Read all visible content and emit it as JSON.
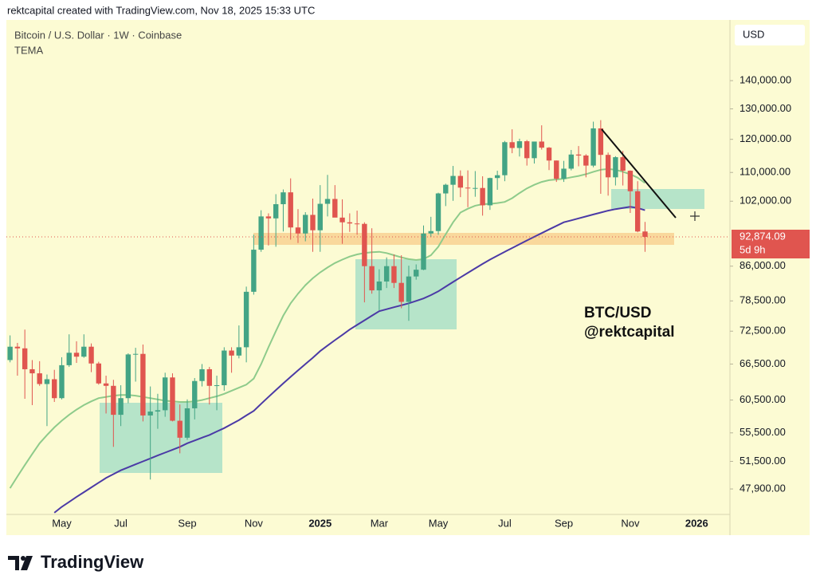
{
  "header": "rektcapital created with TradingView.com, Nov 18, 2025 15:33 UTC",
  "footer_brand": "TradingView",
  "chart_data": {
    "type": "candlestick",
    "title": "Bitcoin / U.S. Dollar · 1W · Coinbase",
    "indicator_label": "TEMA",
    "currency": "USD",
    "log_scale": true,
    "grid": false,
    "up_color": "#43a485",
    "down_color": "#e0554f",
    "ylim": [
      44800,
      164200
    ],
    "yticks": [
      {
        "value": 140000,
        "label": "140,000.00"
      },
      {
        "value": 130000,
        "label": "130,000.00"
      },
      {
        "value": 120000,
        "label": "120,000.00"
      },
      {
        "value": 110000,
        "label": "110,000.00"
      },
      {
        "value": 102000,
        "label": "102,000.00"
      },
      {
        "value": 86000,
        "label": "86,000.00"
      },
      {
        "value": 78500,
        "label": "78,500.00"
      },
      {
        "value": 72500,
        "label": "72,500.00"
      },
      {
        "value": 66500,
        "label": "66,500.00"
      },
      {
        "value": 60500,
        "label": "60,500.00"
      },
      {
        "value": 55500,
        "label": "55,500.00"
      },
      {
        "value": 51500,
        "label": "51,500.00"
      },
      {
        "value": 47900,
        "label": "47,900.00"
      }
    ],
    "categories": [
      null,
      null,
      null,
      null,
      null,
      null,
      null,
      "May",
      null,
      null,
      null,
      null,
      null,
      null,
      null,
      "Jul",
      null,
      null,
      null,
      null,
      null,
      null,
      null,
      null,
      "Sep",
      null,
      null,
      null,
      null,
      null,
      null,
      null,
      null,
      "Nov",
      null,
      null,
      null,
      null,
      null,
      null,
      null,
      null,
      "2025",
      null,
      null,
      null,
      null,
      null,
      null,
      null,
      "Mar",
      null,
      null,
      null,
      null,
      null,
      null,
      null,
      "May",
      null,
      null,
      null,
      null,
      null,
      null,
      null,
      null,
      "Jul",
      null,
      null,
      null,
      null,
      null,
      null,
      null,
      "Sep",
      null,
      null,
      null,
      null,
      null,
      null,
      null,
      null,
      "Nov",
      null,
      null,
      null,
      null,
      null,
      null,
      null,
      null,
      "2026",
      null,
      null,
      null,
      null
    ],
    "open": [
      67200,
      69600,
      69300,
      65600,
      64900,
      63100,
      63900,
      60800,
      66300,
      68500,
      67800,
      69600,
      66600,
      63200,
      62800,
      58200,
      60800,
      68200,
      68300,
      58100,
      58700,
      58900,
      64200,
      57300,
      54800,
      59200,
      63600,
      65600,
      62800,
      62900,
      68900,
      68000,
      69500,
      80400,
      89800,
      98000,
      97500,
      101200,
      104400,
      95200,
      93700,
      98400,
      94500,
      101300,
      102600,
      97700,
      96500,
      96200,
      96100,
      86000,
      80700,
      82600,
      86000,
      82300,
      78300,
      83700,
      85200,
      93700,
      94300,
      104100,
      106500,
      109000,
      105700,
      105500,
      105600,
      100900,
      108400,
      109200,
      119100,
      117300,
      119400,
      114200,
      119300,
      117400,
      113500,
      108200,
      111100,
      115300,
      115000,
      112000,
      123500,
      115200,
      108600,
      114500,
      110500,
      104700,
      94200,
      null,
      null,
      null,
      null,
      null,
      null,
      null,
      null,
      null,
      null,
      null
    ],
    "high": [
      71700,
      70300,
      72800,
      67200,
      67000,
      64700,
      65500,
      67700,
      71900,
      70600,
      71900,
      70200,
      66900,
      64500,
      63800,
      62900,
      68400,
      69400,
      70000,
      62700,
      61500,
      65000,
      64900,
      59800,
      60600,
      64100,
      66500,
      66000,
      64500,
      69500,
      69500,
      73600,
      81500,
      93400,
      99600,
      98800,
      103900,
      105200,
      108300,
      99900,
      99100,
      102700,
      106400,
      109300,
      106400,
      102500,
      98800,
      99500,
      96500,
      95000,
      85300,
      88000,
      88700,
      88500,
      86100,
      86400,
      95700,
      97900,
      104300,
      106800,
      111900,
      110600,
      110600,
      110400,
      108900,
      108500,
      110500,
      119500,
      123200,
      120200,
      119800,
      119300,
      124500,
      117600,
      113500,
      113400,
      116700,
      117900,
      115400,
      125700,
      126200,
      115900,
      114800,
      116400,
      110600,
      107500,
      96600,
      null,
      null,
      null,
      null,
      null,
      null,
      null,
      null,
      null,
      null,
      null
    ],
    "low": [
      66800,
      64500,
      60700,
      59700,
      62800,
      56500,
      60200,
      60600,
      66000,
      66700,
      67600,
      65100,
      63000,
      58400,
      53500,
      56500,
      60000,
      63500,
      57200,
      49100,
      56100,
      57900,
      57200,
      52600,
      54500,
      57500,
      62700,
      59800,
      58900,
      62000,
      65000,
      67500,
      66800,
      79800,
      89300,
      90800,
      90500,
      94200,
      92200,
      91400,
      91800,
      89300,
      89300,
      98000,
      97800,
      91200,
      94100,
      93400,
      78200,
      80000,
      76600,
      81200,
      81200,
      77000,
      74500,
      83000,
      85100,
      92800,
      93400,
      100700,
      102100,
      103100,
      100400,
      103200,
      98200,
      99700,
      105100,
      107500,
      115700,
      114700,
      112000,
      112600,
      116800,
      110700,
      107300,
      107300,
      110600,
      111800,
      108600,
      111500,
      104000,
      103500,
      106300,
      106300,
      98900,
      94000,
      89300,
      null,
      null,
      null,
      null,
      null,
      null,
      null,
      null,
      null,
      null,
      null
    ],
    "close": [
      69600,
      69300,
      65600,
      64900,
      63100,
      63900,
      60800,
      66300,
      68500,
      67800,
      69600,
      66600,
      63200,
      62800,
      58200,
      60800,
      68200,
      68300,
      58100,
      58700,
      58900,
      64200,
      57300,
      54800,
      59200,
      63600,
      65600,
      62800,
      62900,
      68900,
      68000,
      69500,
      80400,
      89800,
      98000,
      97500,
      101200,
      104400,
      95200,
      93700,
      98400,
      94500,
      101300,
      102600,
      97700,
      96500,
      96200,
      96100,
      86000,
      80700,
      82600,
      86000,
      82300,
      78300,
      83700,
      85200,
      93700,
      94300,
      104100,
      106500,
      109000,
      105700,
      105500,
      105600,
      100900,
      108400,
      109200,
      119100,
      117300,
      119400,
      114200,
      119300,
      117400,
      113500,
      108200,
      111100,
      115300,
      115000,
      112000,
      123500,
      115200,
      108600,
      114500,
      110500,
      104700,
      94200,
      92874.09,
      null,
      null,
      null,
      null,
      null,
      null,
      null,
      null,
      null,
      null,
      null
    ],
    "indicators": [
      {
        "color": "#8ecb8b",
        "values": [
          48000,
          49500,
          51000,
          52500,
          54000,
          55200,
          56300,
          57300,
          58200,
          59000,
          59700,
          60300,
          60800,
          61000,
          61200,
          61300,
          61300,
          61200,
          61000,
          60800,
          60600,
          60400,
          60300,
          60200,
          60200,
          60300,
          60500,
          60800,
          61100,
          61500,
          62000,
          62500,
          63000,
          64000,
          66500,
          69500,
          72500,
          75500,
          78000,
          80000,
          81800,
          83300,
          84600,
          85700,
          86700,
          87500,
          88200,
          88700,
          89000,
          89200,
          89300,
          89000,
          88500,
          88000,
          87600,
          87400,
          87600,
          88500,
          90500,
          93500,
          96500,
          99000,
          100000,
          100800,
          101200,
          101300,
          101500,
          101800,
          102800,
          104200,
          105500,
          106500,
          107300,
          107800,
          108000,
          108200,
          108600,
          109000,
          109500,
          110200,
          110800,
          111000,
          110800,
          110200,
          109500,
          108500,
          107000,
          null,
          null,
          null,
          null,
          null,
          null,
          null,
          null,
          null,
          null,
          null
        ]
      },
      {
        "color": "#4b3aa6",
        "values": [
          null,
          null,
          null,
          null,
          null,
          null,
          45000,
          45700,
          46300,
          46900,
          47500,
          48100,
          48700,
          49300,
          49800,
          50300,
          50700,
          51100,
          51500,
          51900,
          52300,
          52700,
          53100,
          53500,
          54000,
          54400,
          54800,
          55200,
          55700,
          56200,
          56800,
          57400,
          58100,
          58800,
          59900,
          61000,
          62100,
          63200,
          64300,
          65400,
          66500,
          67600,
          68800,
          69800,
          70800,
          71800,
          72800,
          73700,
          74600,
          75500,
          76400,
          76800,
          77200,
          77600,
          78000,
          78500,
          79000,
          79700,
          80500,
          81500,
          82500,
          83500,
          84500,
          85500,
          86500,
          87500,
          88400,
          89300,
          90200,
          91100,
          92000,
          92900,
          93800,
          94700,
          95600,
          96500,
          97000,
          97500,
          98000,
          98500,
          99000,
          99500,
          99900,
          100200,
          100500,
          100200,
          99600,
          null,
          null,
          null,
          null,
          null,
          null,
          null,
          null,
          null,
          null,
          null
        ]
      }
    ],
    "last_price": {
      "value": 92874.09,
      "label": "92,874.09"
    },
    "countdown": "5d 9h",
    "annotations": [
      "BTC/USD",
      "@rektcapital"
    ]
  }
}
